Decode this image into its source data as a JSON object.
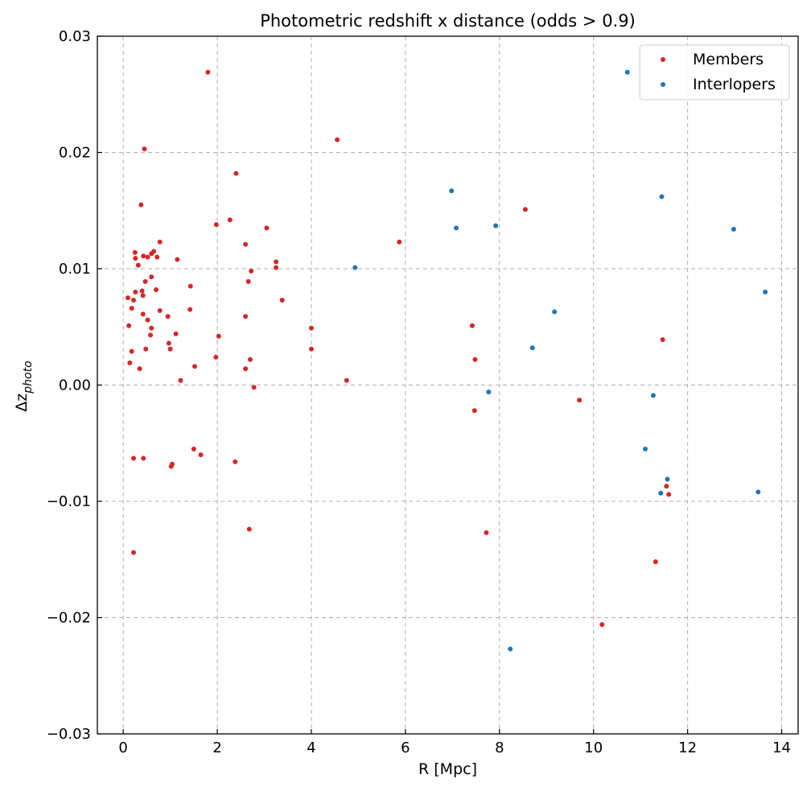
{
  "chart_data": {
    "type": "scatter",
    "title": "Photometric redshift x distance (odds > 0.9)",
    "xlabel": "R [Mpc]",
    "ylabel_main": "Δz",
    "ylabel_sub": "photo",
    "xlim": [
      -0.55,
      14.35
    ],
    "ylim": [
      -0.03,
      0.03
    ],
    "xticks": [
      0,
      2,
      4,
      6,
      8,
      10,
      12,
      14
    ],
    "xtick_labels": [
      "0",
      "2",
      "4",
      "6",
      "8",
      "10",
      "12",
      "14"
    ],
    "yticks": [
      -0.03,
      -0.02,
      -0.01,
      0.0,
      0.01,
      0.02,
      0.03
    ],
    "ytick_labels": [
      "−0.03",
      "−0.02",
      "−0.01",
      "0.00",
      "0.01",
      "0.02",
      "0.03"
    ],
    "grid": true,
    "legend_position": "top-right",
    "series": [
      {
        "name": "Members",
        "color": "#d62728",
        "points": [
          [
            1.8,
            0.0269
          ],
          [
            4.55,
            0.0211
          ],
          [
            0.45,
            0.0203
          ],
          [
            2.4,
            0.0182
          ],
          [
            0.38,
            0.0155
          ],
          [
            8.55,
            0.0151
          ],
          [
            2.27,
            0.0142
          ],
          [
            1.98,
            0.0138
          ],
          [
            3.05,
            0.0135
          ],
          [
            5.87,
            0.0123
          ],
          [
            0.78,
            0.0123
          ],
          [
            2.6,
            0.0121
          ],
          [
            0.25,
            0.0114
          ],
          [
            0.65,
            0.0115
          ],
          [
            0.6,
            0.0113
          ],
          [
            0.43,
            0.0111
          ],
          [
            0.52,
            0.011
          ],
          [
            0.72,
            0.011
          ],
          [
            0.26,
            0.0109
          ],
          [
            1.15,
            0.0108
          ],
          [
            3.25,
            0.0106
          ],
          [
            0.32,
            0.0103
          ],
          [
            3.25,
            0.0101
          ],
          [
            2.72,
            0.0098
          ],
          [
            0.6,
            0.0093
          ],
          [
            0.47,
            0.0089
          ],
          [
            2.66,
            0.0089
          ],
          [
            1.43,
            0.0085
          ],
          [
            0.7,
            0.0082
          ],
          [
            0.4,
            0.0081
          ],
          [
            0.26,
            0.008
          ],
          [
            0.42,
            0.0077
          ],
          [
            0.1,
            0.0075
          ],
          [
            0.22,
            0.0073
          ],
          [
            3.38,
            0.0073
          ],
          [
            0.18,
            0.0066
          ],
          [
            1.42,
            0.0065
          ],
          [
            0.78,
            0.0064
          ],
          [
            0.42,
            0.0061
          ],
          [
            0.95,
            0.0059
          ],
          [
            2.6,
            0.0059
          ],
          [
            0.52,
            0.0056
          ],
          [
            0.12,
            0.0051
          ],
          [
            4.0,
            0.0049
          ],
          [
            0.6,
            0.0049
          ],
          [
            7.42,
            0.0051
          ],
          [
            1.12,
            0.0044
          ],
          [
            0.58,
            0.0043
          ],
          [
            2.03,
            0.0042
          ],
          [
            11.47,
            0.0039
          ],
          [
            0.97,
            0.0036
          ],
          [
            0.18,
            0.0029
          ],
          [
            1.0,
            0.0031
          ],
          [
            0.48,
            0.0031
          ],
          [
            4.0,
            0.0031
          ],
          [
            1.97,
            0.0024
          ],
          [
            7.48,
            0.0022
          ],
          [
            2.7,
            0.0022
          ],
          [
            0.14,
            0.0019
          ],
          [
            1.52,
            0.0016
          ],
          [
            0.35,
            0.0014
          ],
          [
            2.6,
            0.0014
          ],
          [
            4.75,
            0.0004
          ],
          [
            1.22,
            0.0004
          ],
          [
            2.78,
            -0.0002
          ],
          [
            9.7,
            -0.0013
          ],
          [
            7.47,
            -0.0022
          ],
          [
            1.5,
            -0.0055
          ],
          [
            1.65,
            -0.006
          ],
          [
            0.22,
            -0.0063
          ],
          [
            0.43,
            -0.0063
          ],
          [
            2.38,
            -0.0066
          ],
          [
            1.04,
            -0.0068
          ],
          [
            1.02,
            -0.007
          ],
          [
            11.55,
            -0.0087
          ],
          [
            11.6,
            -0.0094
          ],
          [
            2.68,
            -0.0124
          ],
          [
            7.72,
            -0.0127
          ],
          [
            0.22,
            -0.0144
          ],
          [
            11.32,
            -0.0152
          ],
          [
            10.18,
            -0.0206
          ]
        ]
      },
      {
        "name": "Interlopers",
        "color": "#1f77b4",
        "points": [
          [
            10.72,
            0.0269
          ],
          [
            6.98,
            0.0167
          ],
          [
            11.45,
            0.0162
          ],
          [
            7.92,
            0.0137
          ],
          [
            7.08,
            0.0135
          ],
          [
            12.98,
            0.0134
          ],
          [
            4.93,
            0.0101
          ],
          [
            13.65,
            0.008
          ],
          [
            9.17,
            0.0063
          ],
          [
            8.7,
            0.0032
          ],
          [
            7.77,
            -0.0006
          ],
          [
            11.27,
            -0.0009
          ],
          [
            11.1,
            -0.0055
          ],
          [
            11.57,
            -0.0081
          ],
          [
            11.43,
            -0.0093
          ],
          [
            13.5,
            -0.0092
          ],
          [
            8.23,
            -0.0227
          ]
        ]
      }
    ]
  }
}
